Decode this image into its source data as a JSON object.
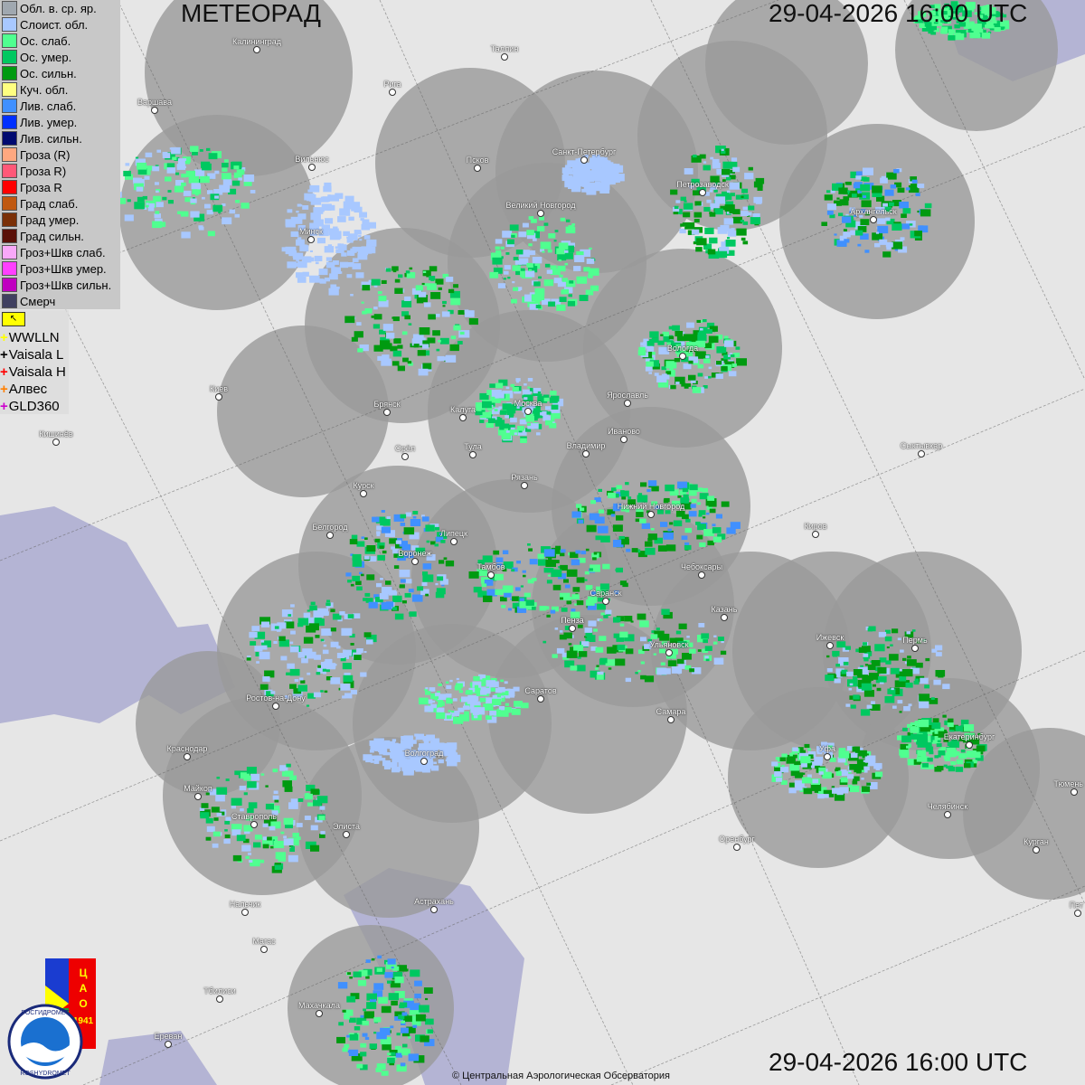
{
  "header": {
    "title": "МЕТЕОРАД",
    "timestamp": "29-04-2026  16:00 UTC"
  },
  "legend": [
    {
      "label": "Обл. в. ср. яр.",
      "color": "#a0a8b0"
    },
    {
      "label": "Слоист. обл.",
      "color": "#a8c8ff"
    },
    {
      "label": "Ос. слаб.",
      "color": "#50ff90"
    },
    {
      "label": "Ос. умер.",
      "color": "#00c860"
    },
    {
      "label": "Ос. сильн.",
      "color": "#009a10"
    },
    {
      "label": "Куч. обл.",
      "color": "#ffff80"
    },
    {
      "label": "Лив. слаб.",
      "color": "#4090ff"
    },
    {
      "label": "Лив. умер.",
      "color": "#0030ff"
    },
    {
      "label": "Лив. сильн.",
      "color": "#000a70"
    },
    {
      "label": "Гроза (R)",
      "color": "#ffa880"
    },
    {
      "label": "Гроза R)",
      "color": "#ff5878"
    },
    {
      "label": "Гроза R",
      "color": "#ff0000"
    },
    {
      "label": "Град слаб.",
      "color": "#c05810"
    },
    {
      "label": "Град умер.",
      "color": "#7a3008"
    },
    {
      "label": "Град сильн.",
      "color": "#5a1008"
    },
    {
      "label": "Гроз+Шкв слаб.",
      "color": "#f8a8f8"
    },
    {
      "label": "Гроз+Шкв умер.",
      "color": "#ff40ff"
    },
    {
      "label": "Гроз+Шкв сильн.",
      "color": "#c000c0"
    },
    {
      "label": "Смерч",
      "color": "#404060"
    }
  ],
  "lightning": [
    {
      "label": "WWLLN",
      "color": "#ffff00"
    },
    {
      "label": "Vaisala L",
      "color": "#000000"
    },
    {
      "label": "Vaisala H",
      "color": "#ff0000"
    },
    {
      "label": "Алвес",
      "color": "#ff7f00"
    },
    {
      "label": "GLD360",
      "color": "#cc00cc"
    }
  ],
  "cities": [
    "Калининград",
    "Таллин",
    "Рига",
    "Варшава",
    "Вильнюс",
    "Псков",
    "Санкт-Петербург",
    "Петрозаводск",
    "Архангельск",
    "Великий Новгород",
    "Минск",
    "Вологда",
    "Ярославль",
    "Москва",
    "Калуга",
    "Брянск",
    "Киев",
    "Кишинёв",
    "Иваново",
    "Владимир",
    "Тула",
    "Орёл",
    "Сыктывкар",
    "Рязань",
    "Курск",
    "Нижний Новгород",
    "Киров",
    "Белгород",
    "Липецк",
    "Воронеж",
    "Чебоксары",
    "Тамбов",
    "Саранск",
    "Казань",
    "Пенза",
    "Ижевск",
    "Пермь",
    "Ульяновск",
    "Ростов-на-Дону",
    "Саратов",
    "Самара",
    "Екатеринбург",
    "Краснодар",
    "Волгоград",
    "Уфа",
    "Тюмень",
    "Майкоп",
    "Челябинск",
    "Ставрополь",
    "Элиста",
    "Оренбург",
    "Курган",
    "Астрахань",
    "Нальчик",
    "Магас",
    "Тбилиси",
    "Махачкала",
    "Ереван",
    "Пет"
  ],
  "logos": {
    "cao": "ЦАО 1941",
    "roshydromet": "РОСГИДРОМЕТ ROSHYDROMET"
  },
  "copyright": "© Центральная Аэрологическая Обсерватория"
}
